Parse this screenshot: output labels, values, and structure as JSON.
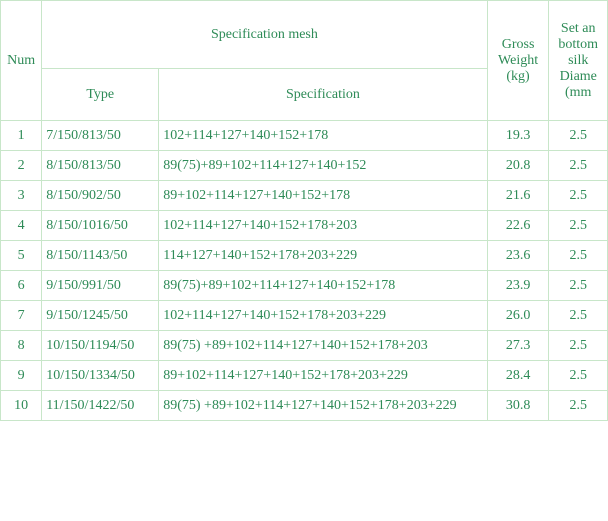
{
  "headers": {
    "num": "Num",
    "spec_mesh": "Specification mesh",
    "type": "Type",
    "specification": "Specification",
    "gross_weight": "Gross Weight (kg)",
    "diameter": "Set an bottom silk Diame (mm"
  },
  "rows": [
    {
      "num": "1",
      "type": "7/150/813/50",
      "spec": "102+114+127+140+152+178",
      "weight": "19.3",
      "diam": "2.5"
    },
    {
      "num": "2",
      "type": "8/150/813/50",
      "spec": "89(75)+89+102+114+127+140+152",
      "weight": "20.8",
      "diam": "2.5"
    },
    {
      "num": "3",
      "type": "8/150/902/50",
      "spec": "89+102+114+127+140+152+178",
      "weight": "21.6",
      "diam": "2.5"
    },
    {
      "num": "4",
      "type": "8/150/1016/50",
      "spec": "102+114+127+140+152+178+203",
      "weight": "22.6",
      "diam": "2.5"
    },
    {
      "num": "5",
      "type": "8/150/1143/50",
      "spec": "114+127+140+152+178+203+229",
      "weight": "23.6",
      "diam": "2.5"
    },
    {
      "num": "6",
      "type": "9/150/991/50",
      "spec": "89(75)+89+102+114+127+140+152+178",
      "weight": "23.9",
      "diam": "2.5"
    },
    {
      "num": "7",
      "type": "9/150/1245/50",
      "spec": "102+114+127+140+152+178+203+229",
      "weight": "26.0",
      "diam": "2.5"
    },
    {
      "num": "8",
      "type": "10/150/1194/50",
      "spec": "89(75) +89+102+114+127+140+152+178+203",
      "weight": "27.3",
      "diam": "2.5"
    },
    {
      "num": "9",
      "type": "10/150/1334/50",
      "spec": "89+102+114+127+140+152+178+203+229",
      "weight": "28.4",
      "diam": "2.5"
    },
    {
      "num": "10",
      "type": "11/150/1422/50",
      "spec": "89(75) +89+102+114+127+140+152+178+203+229",
      "weight": "30.8",
      "diam": "2.5"
    }
  ],
  "colors": {
    "text": "#2e8b57",
    "border": "#c8e6c9",
    "background": "#ffffff"
  }
}
